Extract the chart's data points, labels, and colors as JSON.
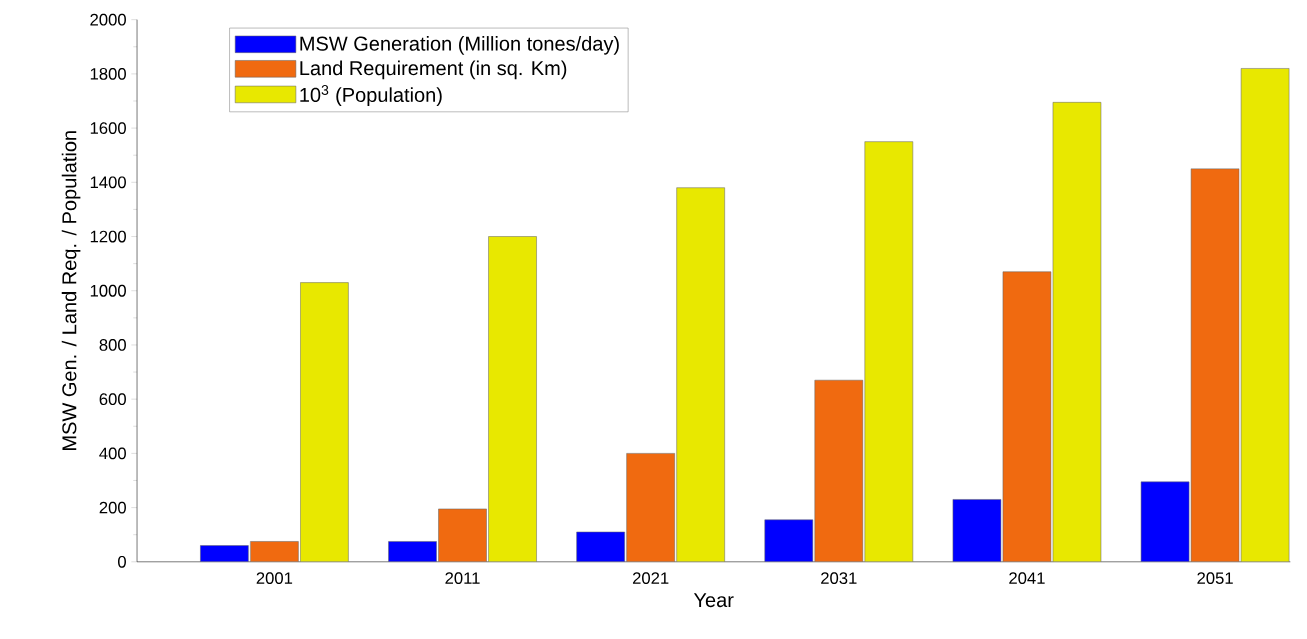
{
  "chart_data": {
    "type": "bar",
    "xlabel": "Year",
    "ylabel": "MSW Gen. / Land Req. / Population",
    "categories": [
      "2001",
      "2011",
      "2021",
      "2031",
      "2041",
      "2051"
    ],
    "series": [
      {
        "name": "MSW Generation (Million tones/day)",
        "color": "#0000ff",
        "values": [
          60,
          75,
          110,
          155,
          230,
          295
        ]
      },
      {
        "name": "Land Requirement (in sq. Km)",
        "color": "#f06a10",
        "values": [
          75,
          195,
          400,
          670,
          1070,
          1450
        ]
      },
      {
        "name": "10$^{3}$ (Population)",
        "color": "#e8e800",
        "values": [
          1030,
          1200,
          1380,
          1550,
          1695,
          1820
        ]
      }
    ],
    "ylim": [
      0,
      2000
    ],
    "yticks": [
      0,
      200,
      400,
      600,
      800,
      1000,
      1200,
      1400,
      1600,
      1800,
      2000
    ],
    "grid": false,
    "legend": "top"
  }
}
